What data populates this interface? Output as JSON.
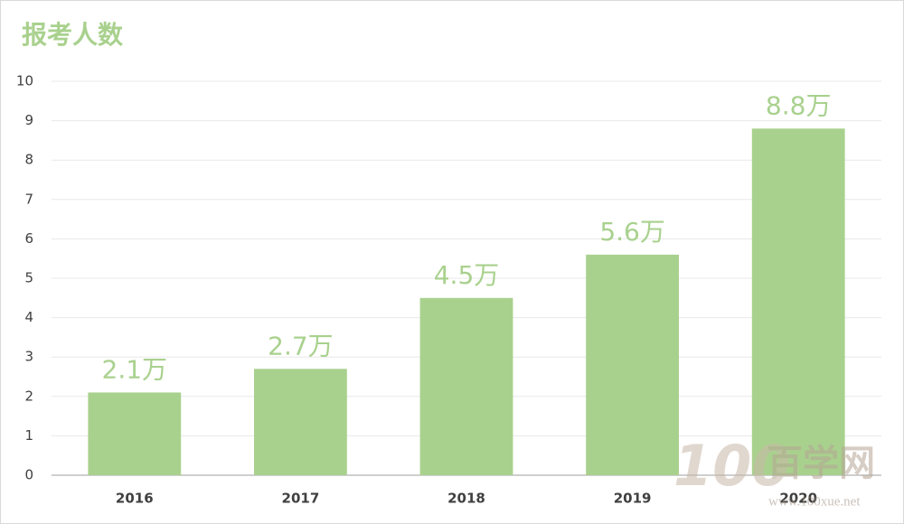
{
  "chart_data": {
    "type": "bar",
    "title": "报考人数",
    "categories": [
      "2016",
      "2017",
      "2018",
      "2019",
      "2020"
    ],
    "values": [
      2.1,
      2.7,
      4.5,
      5.6,
      8.8
    ],
    "value_labels": [
      "2.1万",
      "2.7万",
      "4.5万",
      "5.6万",
      "8.8万"
    ],
    "color": "#a9d18e",
    "ylim": [
      0,
      10
    ],
    "yticks": [
      0,
      1,
      2,
      3,
      4,
      5,
      6,
      7,
      8,
      9,
      10
    ],
    "grid": true
  },
  "watermark": {
    "logo": "100",
    "name": "百学网",
    "url": "www.100xue.net"
  }
}
